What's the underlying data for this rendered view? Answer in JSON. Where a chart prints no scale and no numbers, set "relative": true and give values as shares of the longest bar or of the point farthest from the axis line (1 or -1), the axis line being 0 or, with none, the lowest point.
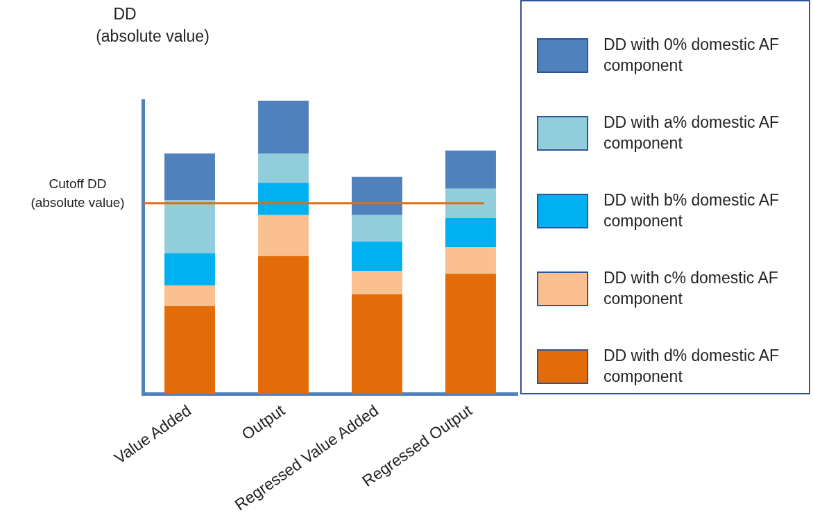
{
  "chart_data": {
    "type": "bar",
    "stacked": true,
    "relative": true,
    "ylabel": "DD\n(absolute value)",
    "legend": "right",
    "categories": [
      "Value Added",
      "Output",
      "Regressed Value Added",
      "Regressed Output"
    ],
    "series": [
      {
        "name": "DD with d% domestic AF component",
        "color": "#e36c09",
        "values": [
          0.3,
          0.47,
          0.34,
          0.41
        ]
      },
      {
        "name": "DD with c% domestic AF component",
        "color": "#fac090",
        "values": [
          0.07,
          0.14,
          0.08,
          0.09
        ]
      },
      {
        "name": "DD with b% domestic AF component",
        "color": "#00b0f0",
        "values": [
          0.11,
          0.11,
          0.1,
          0.1
        ]
      },
      {
        "name": "DD with a% domestic AF component",
        "color": "#92cddc",
        "values": [
          0.18,
          0.1,
          0.09,
          0.1
        ]
      },
      {
        "name": "DD with 0% domestic AF component",
        "color": "#4f81bd",
        "values": [
          0.16,
          0.18,
          0.13,
          0.13
        ]
      }
    ],
    "ref_lines": [
      {
        "axis": "y",
        "value": 0.65,
        "label": "Cutoff DD\n(absolute value)",
        "color": "#e46c0a"
      }
    ]
  }
}
